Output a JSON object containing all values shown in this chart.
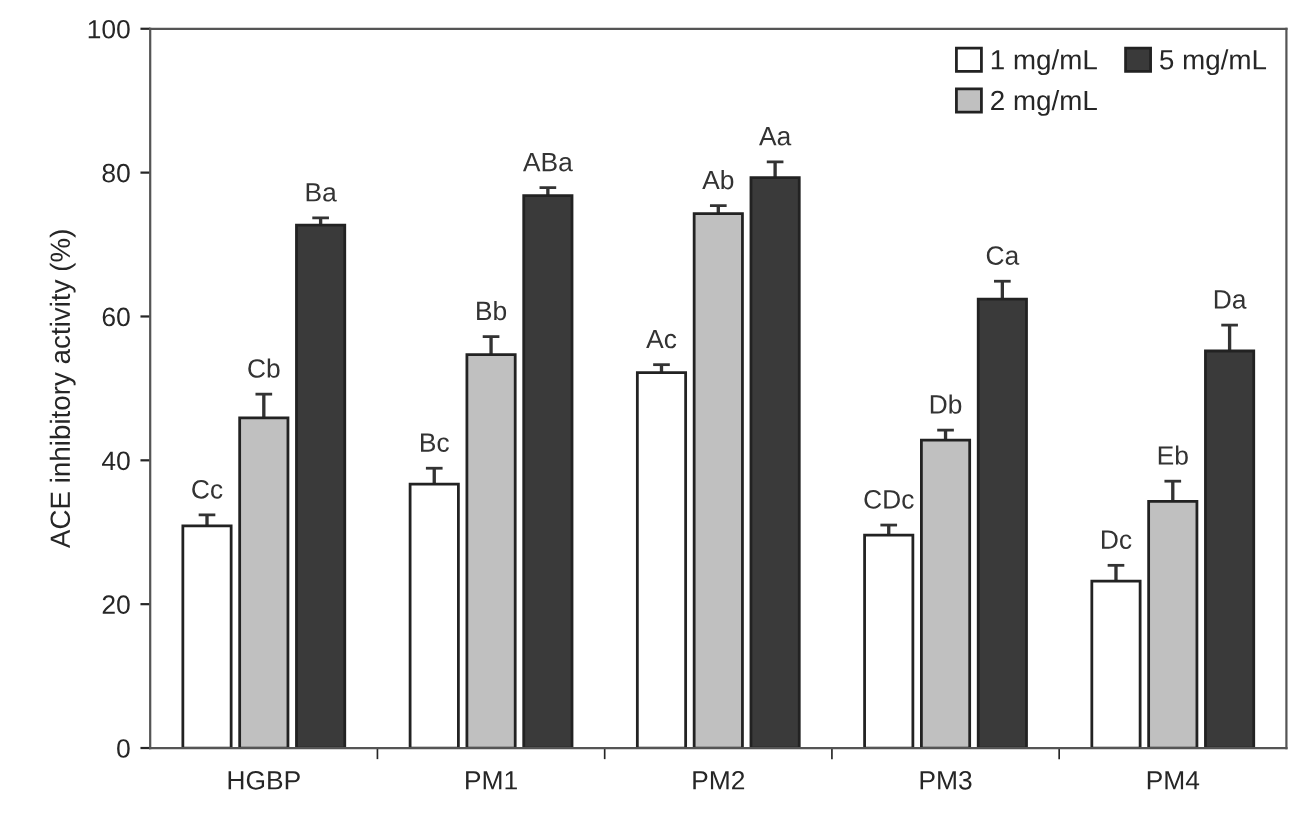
{
  "chart_data": {
    "type": "bar",
    "ylabel": "ACE inhibitory activity (%)",
    "categories": [
      "HGBP",
      "PM1",
      "PM2",
      "PM3",
      "PM4"
    ],
    "series": [
      {
        "name": "1 mg/mL",
        "color": "#ffffff",
        "values": [
          30.9,
          36.7,
          52.2,
          29.6,
          23.2
        ],
        "errors": [
          1.5,
          2.2,
          1.1,
          1.4,
          2.2
        ],
        "value_labels": [
          "Cc",
          "Bc",
          "Ac",
          "CDc",
          "Dc"
        ]
      },
      {
        "name": "2 mg/mL",
        "color": "#c0c0c0",
        "values": [
          45.9,
          54.7,
          74.3,
          42.8,
          34.3
        ],
        "errors": [
          3.3,
          2.5,
          1.1,
          1.4,
          2.8
        ],
        "value_labels": [
          "Cb",
          "Bb",
          "Ab",
          "Db",
          "Eb"
        ]
      },
      {
        "name": "5 mg/mL",
        "color": "#3a3a3a",
        "values": [
          72.7,
          76.8,
          79.3,
          62.4,
          55.2
        ],
        "errors": [
          1.0,
          1.1,
          2.2,
          2.5,
          3.6
        ],
        "value_labels": [
          "Ba",
          "ABa",
          "Aa",
          "Ca",
          "Da"
        ]
      }
    ],
    "ylim": [
      0,
      100
    ],
    "yticks": [
      0,
      20,
      40,
      60,
      80,
      100
    ],
    "grid": false,
    "legend": "top right"
  }
}
